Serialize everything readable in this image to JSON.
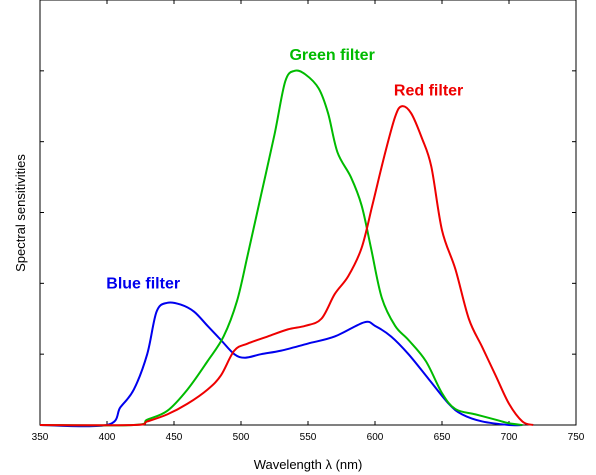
{
  "chart_data": {
    "type": "line",
    "title": "",
    "xlabel": "Wavelength λ (nm)",
    "ylabel": "Spectral sensitivities",
    "xlim": [
      350,
      750
    ],
    "ylim": [
      0,
      1.2
    ],
    "x_ticks": [
      350,
      400,
      450,
      500,
      550,
      600,
      650,
      700,
      750
    ],
    "y_ticks": [
      0.2,
      0.4,
      0.6,
      0.8,
      1.0
    ],
    "grid": false,
    "legend": "none",
    "series": [
      {
        "name": "Blue filter",
        "color": "#0000ee",
        "label_anchor": [
          427,
          0.385
        ],
        "points": [
          [
            350,
            0
          ],
          [
            400,
            0
          ],
          [
            410,
            0.05
          ],
          [
            420,
            0.1
          ],
          [
            430,
            0.2
          ],
          [
            437,
            0.32
          ],
          [
            445,
            0.345
          ],
          [
            455,
            0.34
          ],
          [
            465,
            0.32
          ],
          [
            475,
            0.28
          ],
          [
            485,
            0.24
          ],
          [
            495,
            0.2
          ],
          [
            503,
            0.19
          ],
          [
            515,
            0.2
          ],
          [
            530,
            0.21
          ],
          [
            550,
            0.23
          ],
          [
            570,
            0.25
          ],
          [
            592,
            0.29
          ],
          [
            600,
            0.28
          ],
          [
            612,
            0.25
          ],
          [
            625,
            0.2
          ],
          [
            640,
            0.13
          ],
          [
            655,
            0.06
          ],
          [
            665,
            0.03
          ],
          [
            680,
            0.01
          ],
          [
            700,
            0
          ],
          [
            710,
            0
          ]
        ]
      },
      {
        "name": "Green filter",
        "color": "#00bb00",
        "label_anchor": [
          568,
          1.03
        ],
        "points": [
          [
            350,
            0
          ],
          [
            420,
            0
          ],
          [
            430,
            0.015
          ],
          [
            445,
            0.04
          ],
          [
            460,
            0.1
          ],
          [
            475,
            0.18
          ],
          [
            487,
            0.25
          ],
          [
            497,
            0.35
          ],
          [
            505,
            0.48
          ],
          [
            515,
            0.65
          ],
          [
            525,
            0.82
          ],
          [
            533,
            0.97
          ],
          [
            540,
            1.0
          ],
          [
            548,
            0.99
          ],
          [
            558,
            0.95
          ],
          [
            565,
            0.88
          ],
          [
            572,
            0.77
          ],
          [
            582,
            0.7
          ],
          [
            590,
            0.62
          ],
          [
            597,
            0.5
          ],
          [
            605,
            0.36
          ],
          [
            615,
            0.28
          ],
          [
            625,
            0.24
          ],
          [
            638,
            0.18
          ],
          [
            650,
            0.09
          ],
          [
            660,
            0.045
          ],
          [
            675,
            0.03
          ],
          [
            690,
            0.015
          ],
          [
            700,
            0.005
          ],
          [
            710,
            0
          ]
        ]
      },
      {
        "name": "Red filter",
        "color": "#ee0000",
        "label_anchor": [
          640,
          0.93
        ],
        "points": [
          [
            350,
            0
          ],
          [
            420,
            0
          ],
          [
            430,
            0.01
          ],
          [
            445,
            0.03
          ],
          [
            460,
            0.06
          ],
          [
            475,
            0.1
          ],
          [
            485,
            0.14
          ],
          [
            495,
            0.21
          ],
          [
            505,
            0.23
          ],
          [
            520,
            0.25
          ],
          [
            535,
            0.27
          ],
          [
            548,
            0.28
          ],
          [
            560,
            0.3
          ],
          [
            570,
            0.37
          ],
          [
            580,
            0.42
          ],
          [
            590,
            0.5
          ],
          [
            598,
            0.62
          ],
          [
            607,
            0.76
          ],
          [
            615,
            0.87
          ],
          [
            620,
            0.9
          ],
          [
            627,
            0.88
          ],
          [
            635,
            0.81
          ],
          [
            642,
            0.73
          ],
          [
            650,
            0.55
          ],
          [
            660,
            0.44
          ],
          [
            670,
            0.3
          ],
          [
            680,
            0.22
          ],
          [
            690,
            0.14
          ],
          [
            700,
            0.06
          ],
          [
            710,
            0.01
          ],
          [
            718,
            0
          ]
        ]
      }
    ]
  }
}
